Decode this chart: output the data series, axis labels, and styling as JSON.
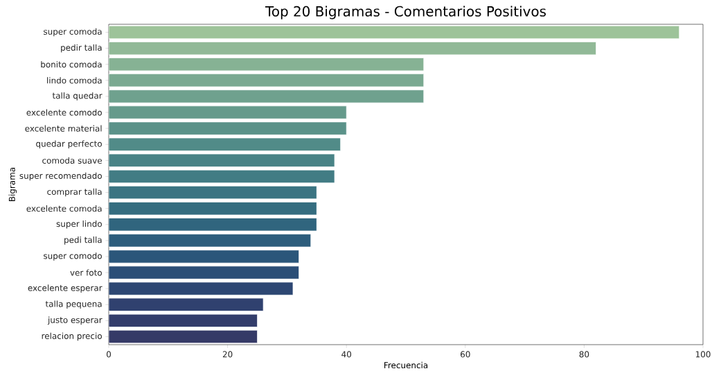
{
  "chart_data": {
    "type": "bar",
    "orientation": "horizontal",
    "title": "Top 20 Bigramas - Comentarios Positivos",
    "xlabel": "Frecuencia",
    "ylabel": "Bigrama",
    "categories": [
      "super comoda",
      "pedir talla",
      "bonito comoda",
      "lindo comoda",
      "talla quedar",
      "excelente comodo",
      "excelente material",
      "quedar perfecto",
      "comoda suave",
      "super recomendado",
      "comprar talla",
      "excelente comoda",
      "super lindo",
      "pedi talla",
      "super comodo",
      "ver foto",
      "excelente esperar",
      "talla pequena",
      "justo esperar",
      "relacion precio"
    ],
    "values": [
      96,
      82,
      53,
      53,
      53,
      40,
      40,
      39,
      38,
      38,
      35,
      35,
      35,
      34,
      32,
      32,
      31,
      26,
      25,
      25
    ],
    "colors": [
      "#9dc399",
      "#91b997",
      "#86b294",
      "#7aa991",
      "#6fa18e",
      "#659a8b",
      "#5b9289",
      "#518b88",
      "#498386",
      "#427c84",
      "#3b7482",
      "#356d80",
      "#30657e",
      "#2d5d7c",
      "#2b567a",
      "#2b4e77",
      "#2d4773",
      "#30416f",
      "#333d6b",
      "#353a67"
    ],
    "xlim": [
      0,
      100
    ],
    "xticks": [
      0,
      20,
      40,
      60,
      80,
      100
    ]
  }
}
